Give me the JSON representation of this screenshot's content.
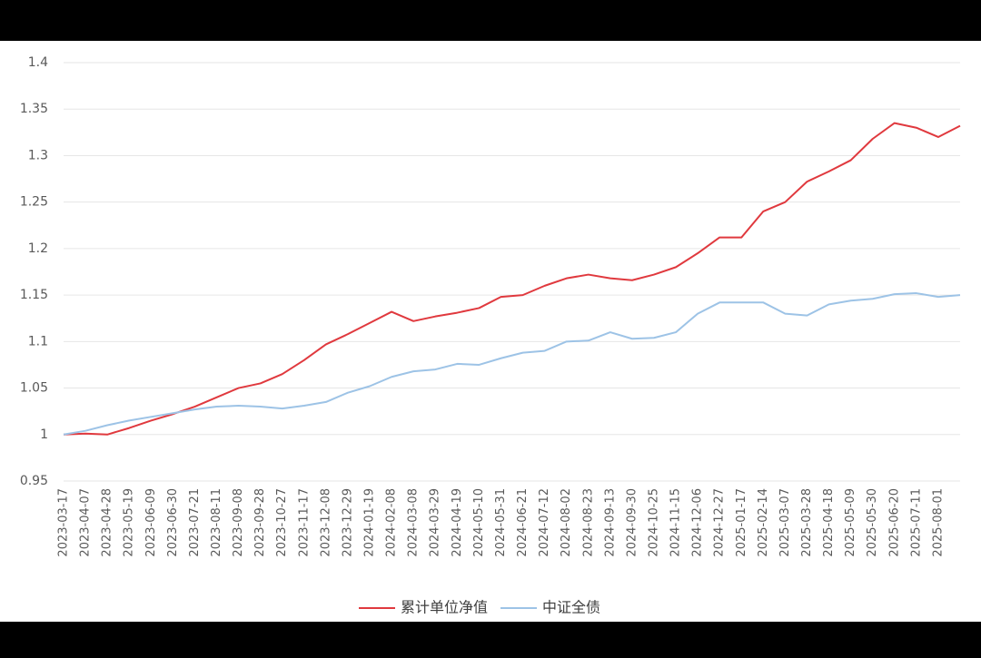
{
  "chart_data": {
    "type": "line",
    "categories": [
      "2023-03-17",
      "2023-04-07",
      "2023-04-28",
      "2023-05-19",
      "2023-06-09",
      "2023-06-30",
      "2023-07-21",
      "2023-08-11",
      "2023-09-08",
      "2023-09-28",
      "2023-10-27",
      "2023-11-17",
      "2023-12-08",
      "2023-12-29",
      "2024-01-19",
      "2024-02-08",
      "2024-03-08",
      "2024-03-29",
      "2024-04-19",
      "2024-05-10",
      "2024-05-31",
      "2024-06-21",
      "2024-07-12",
      "2024-08-02",
      "2024-08-23",
      "2024-09-13",
      "2024-09-30",
      "2024-10-25",
      "2024-11-15",
      "2024-12-06",
      "2024-12-27",
      "2025-01-17",
      "2025-02-14",
      "2025-03-07",
      "2025-03-28",
      "2025-04-18",
      "2025-05-09",
      "2025-05-30",
      "2025-06-20",
      "2025-07-11",
      "2025-08-01",
      null
    ],
    "series": [
      {
        "name": "累计单位净值",
        "color": "#e0393e",
        "values": [
          1.0,
          1.001,
          1.0,
          1.007,
          1.015,
          1.022,
          1.03,
          1.04,
          1.05,
          1.055,
          1.065,
          1.08,
          1.097,
          1.108,
          1.12,
          1.132,
          1.122,
          1.127,
          1.131,
          1.136,
          1.148,
          1.15,
          1.16,
          1.168,
          1.172,
          1.168,
          1.166,
          1.172,
          1.18,
          1.195,
          1.212,
          1.212,
          1.24,
          1.25,
          1.272,
          1.283,
          1.295,
          1.318,
          1.335,
          1.33,
          1.32,
          1.332
        ]
      },
      {
        "name": "中证全债",
        "color": "#9dc3e6",
        "values": [
          1.0,
          1.004,
          1.01,
          1.015,
          1.019,
          1.023,
          1.027,
          1.03,
          1.031,
          1.03,
          1.028,
          1.031,
          1.035,
          1.045,
          1.052,
          1.062,
          1.068,
          1.07,
          1.076,
          1.075,
          1.082,
          1.088,
          1.09,
          1.1,
          1.101,
          1.11,
          1.103,
          1.104,
          1.11,
          1.13,
          1.142,
          1.142,
          1.142,
          1.13,
          1.128,
          1.14,
          1.144,
          1.146,
          1.151,
          1.152,
          1.148,
          1.15
        ]
      }
    ],
    "ylim": [
      0.95,
      1.4
    ],
    "yticks": [
      0.95,
      1,
      1.05,
      1.1,
      1.15,
      1.2,
      1.25,
      1.3,
      1.35,
      1.4
    ],
    "grid": true,
    "legend": "bottom"
  }
}
